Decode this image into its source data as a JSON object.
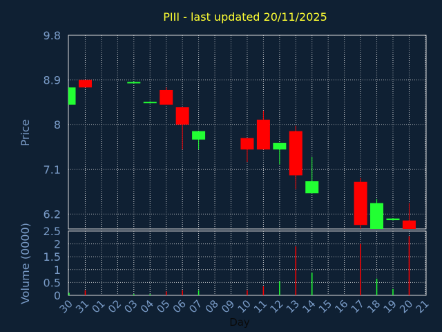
{
  "chart_data": {
    "type": "candlestick",
    "title": "PIII - last updated 20/11/2025",
    "x_label": "Day",
    "x_tick_labels": [
      "30",
      "31",
      "01",
      "02",
      "03",
      "04",
      "05",
      "06",
      "07",
      "08",
      "09",
      "10",
      "11",
      "12",
      "13",
      "14",
      "15",
      "16",
      "17",
      "18",
      "19",
      "20",
      "21"
    ],
    "price_panel": {
      "ylabel": "Price",
      "ylim": [
        5.9,
        9.8
      ],
      "yticks": [
        "9.8",
        "8.9",
        "8",
        "7.1",
        "6.2"
      ],
      "candles": [
        {
          "day": "30",
          "open": 8.4,
          "close": 8.75,
          "high": 8.75,
          "low": 8.4
        },
        {
          "day": "31",
          "open": 8.9,
          "close": 8.75,
          "high": 8.9,
          "low": 8.75
        },
        {
          "day": "03",
          "open": 8.85,
          "close": 8.86,
          "high": 8.87,
          "low": 8.84
        },
        {
          "day": "04",
          "open": 8.44,
          "close": 8.46,
          "high": 8.47,
          "low": 8.43
        },
        {
          "day": "05",
          "open": 8.7,
          "close": 8.4,
          "high": 8.75,
          "low": 8.4
        },
        {
          "day": "06",
          "open": 8.35,
          "close": 8.0,
          "high": 8.35,
          "low": 7.5
        },
        {
          "day": "07",
          "open": 7.7,
          "close": 7.87,
          "high": 7.87,
          "low": 7.5
        },
        {
          "day": "10",
          "open": 7.73,
          "close": 7.5,
          "high": 7.73,
          "low": 7.25
        },
        {
          "day": "11",
          "open": 8.1,
          "close": 7.5,
          "high": 8.28,
          "low": 7.5
        },
        {
          "day": "12",
          "open": 7.5,
          "close": 7.63,
          "high": 7.63,
          "low": 7.2
        },
        {
          "day": "13",
          "open": 7.87,
          "close": 6.98,
          "high": 7.98,
          "low": 6.7
        },
        {
          "day": "14",
          "open": 6.62,
          "close": 6.86,
          "high": 7.35,
          "low": 6.62
        },
        {
          "day": "17",
          "open": 6.85,
          "close": 5.98,
          "high": 6.93,
          "low": 5.85
        },
        {
          "day": "18",
          "open": 5.9,
          "close": 6.42,
          "high": 6.5,
          "low": 5.9
        },
        {
          "day": "19",
          "open": 6.08,
          "close": 6.11,
          "high": 6.12,
          "low": 6.07
        },
        {
          "day": "20",
          "open": 6.07,
          "close": 5.88,
          "high": 6.42,
          "low": 5.88
        }
      ],
      "grid": true
    },
    "volume_panel": {
      "ylabel": "Volume (0000)",
      "ylim": [
        0,
        2.5
      ],
      "yticks": [
        "2.5",
        "2",
        "1.5",
        "1",
        "0.5",
        "0"
      ],
      "bars": [
        {
          "day": "30",
          "value": 0.1,
          "direction": "up"
        },
        {
          "day": "31",
          "value": 0.2,
          "direction": "down"
        },
        {
          "day": "03",
          "value": 0.05,
          "direction": "up"
        },
        {
          "day": "04",
          "value": 0.05,
          "direction": "up"
        },
        {
          "day": "05",
          "value": 0.15,
          "direction": "down"
        },
        {
          "day": "06",
          "value": 0.2,
          "direction": "down"
        },
        {
          "day": "07",
          "value": 0.2,
          "direction": "up"
        },
        {
          "day": "10",
          "value": 0.2,
          "direction": "down"
        },
        {
          "day": "11",
          "value": 0.35,
          "direction": "down"
        },
        {
          "day": "12",
          "value": 0.55,
          "direction": "up"
        },
        {
          "day": "13",
          "value": 1.9,
          "direction": "down"
        },
        {
          "day": "14",
          "value": 0.88,
          "direction": "up"
        },
        {
          "day": "17",
          "value": 2.0,
          "direction": "down"
        },
        {
          "day": "18",
          "value": 0.65,
          "direction": "up"
        },
        {
          "day": "19",
          "value": 0.25,
          "direction": "up"
        },
        {
          "day": "20",
          "value": 2.3,
          "direction": "down"
        }
      ],
      "grid": true
    },
    "colors": {
      "up": "#22ff33",
      "down": "#ff0000",
      "background": "#0f2033",
      "grid": "#e6e6e6",
      "axis_text": "#7a9cc8",
      "title": "#ffff33"
    }
  }
}
